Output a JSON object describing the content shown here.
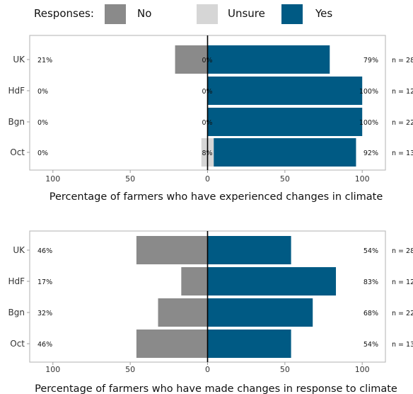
{
  "legend": {
    "title": "Responses:",
    "items": [
      {
        "label": "No",
        "color": "#8a8a8a"
      },
      {
        "label": "Unsure",
        "color": "#d6d6d6"
      },
      {
        "label": "Yes",
        "color": "#005a84"
      }
    ]
  },
  "chart_data": [
    {
      "type": "bar",
      "orientation": "horizontal-diverging",
      "xlabel": "Percentage of farmers who have experienced changes in climate",
      "xlim": [
        -115,
        115
      ],
      "xticks": [
        -100,
        -50,
        0,
        50,
        100
      ],
      "xtick_labels": [
        "100",
        "50",
        "0",
        "50",
        "100"
      ],
      "categories": [
        "UK",
        "HdF",
        "Bgn",
        "Oct"
      ],
      "sample_sizes": [
        "n = 28",
        "n = 12",
        "n = 22",
        "n = 13"
      ],
      "series": [
        {
          "name": "No",
          "values": [
            21,
            0,
            0,
            0
          ],
          "labels": [
            "21%",
            "0%",
            "0%",
            "0%"
          ]
        },
        {
          "name": "Unsure",
          "values": [
            0,
            0,
            0,
            8
          ],
          "labels": [
            "0%",
            "0%",
            "0%",
            "8%"
          ]
        },
        {
          "name": "Yes",
          "values": [
            79,
            100,
            100,
            92
          ],
          "labels": [
            "79%",
            "100%",
            "100%",
            "92%"
          ]
        }
      ]
    },
    {
      "type": "bar",
      "orientation": "horizontal-diverging",
      "xlabel": "Percentage of farmers who have made changes in response to climate",
      "xlim": [
        -115,
        115
      ],
      "xticks": [
        -100,
        -50,
        0,
        50,
        100
      ],
      "xtick_labels": [
        "100",
        "50",
        "0",
        "50",
        "100"
      ],
      "categories": [
        "UK",
        "HdF",
        "Bgn",
        "Oct"
      ],
      "sample_sizes": [
        "n = 28",
        "n = 12",
        "n = 22",
        "n = 13"
      ],
      "series": [
        {
          "name": "No",
          "values": [
            46,
            17,
            32,
            46
          ],
          "labels": [
            "46%",
            "17%",
            "32%",
            "46%"
          ]
        },
        {
          "name": "Yes",
          "values": [
            54,
            83,
            68,
            54
          ],
          "labels": [
            "54%",
            "83%",
            "68%",
            "54%"
          ]
        }
      ]
    }
  ]
}
